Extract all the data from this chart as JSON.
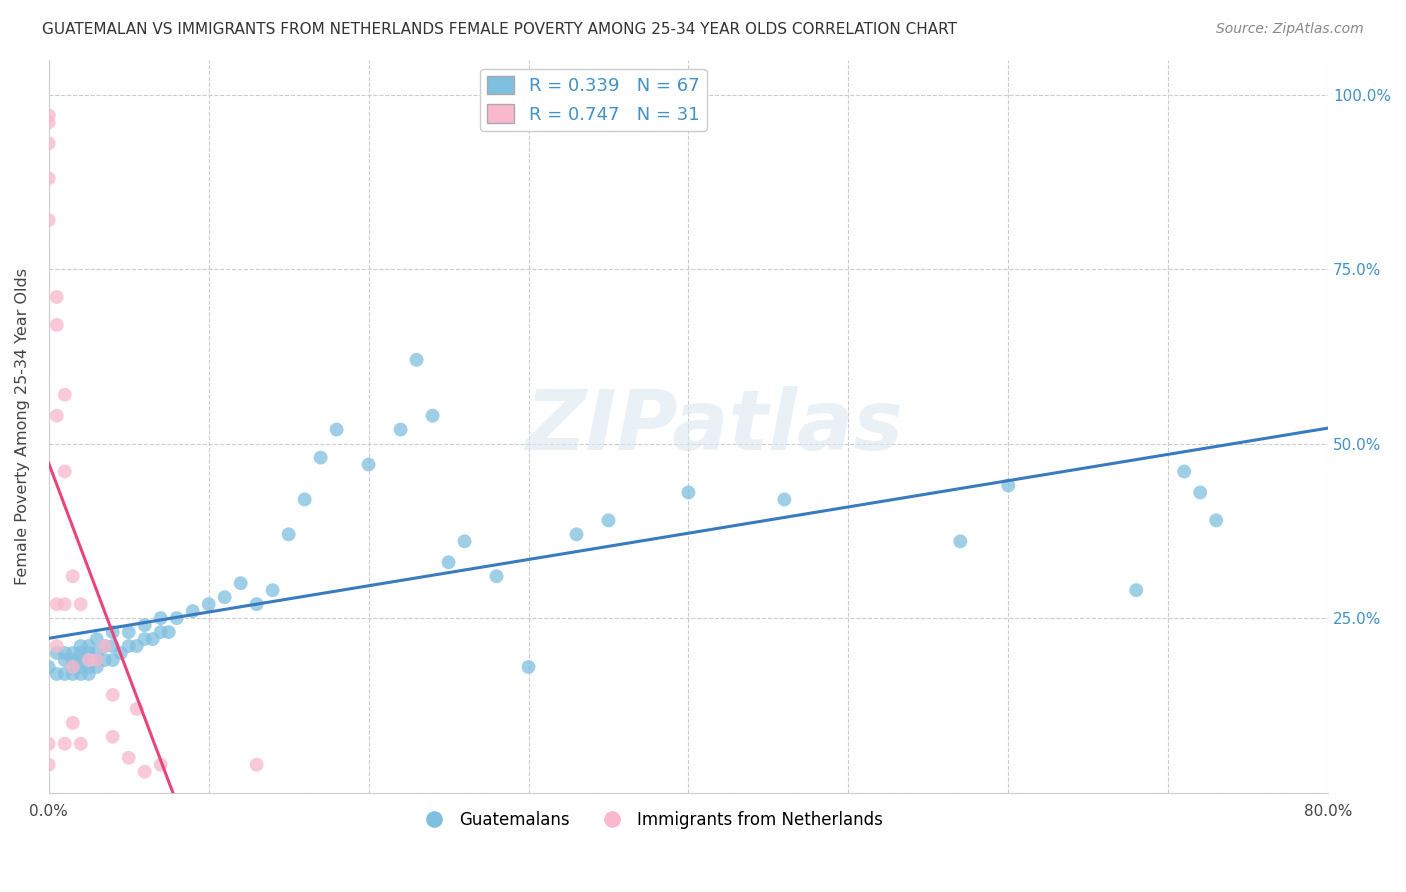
{
  "title": "GUATEMALAN VS IMMIGRANTS FROM NETHERLANDS FEMALE POVERTY AMONG 25-34 YEAR OLDS CORRELATION CHART",
  "source": "Source: ZipAtlas.com",
  "ylabel": "Female Poverty Among 25-34 Year Olds",
  "xlim": [
    0.0,
    0.8
  ],
  "ylim": [
    0.0,
    1.05
  ],
  "xticks": [
    0.0,
    0.1,
    0.2,
    0.3,
    0.4,
    0.5,
    0.6,
    0.7,
    0.8
  ],
  "xticklabels": [
    "0.0%",
    "",
    "",
    "",
    "",
    "",
    "",
    "",
    "80.0%"
  ],
  "ytick_positions": [
    0.0,
    0.25,
    0.5,
    0.75,
    1.0
  ],
  "ytick_labels": [
    "",
    "25.0%",
    "50.0%",
    "75.0%",
    "100.0%"
  ],
  "blue_R": 0.339,
  "blue_N": 67,
  "pink_R": 0.747,
  "pink_N": 31,
  "blue_color": "#7fbfdf",
  "pink_color": "#f9b8cc",
  "blue_line_color": "#3a7bbf",
  "pink_line_color": "#e8457a",
  "watermark": "ZIPatlas",
  "blue_scatter_x": [
    0.0,
    0.005,
    0.005,
    0.01,
    0.01,
    0.01,
    0.015,
    0.015,
    0.015,
    0.015,
    0.02,
    0.02,
    0.02,
    0.02,
    0.02,
    0.025,
    0.025,
    0.025,
    0.025,
    0.03,
    0.03,
    0.03,
    0.03,
    0.035,
    0.035,
    0.04,
    0.04,
    0.04,
    0.045,
    0.05,
    0.05,
    0.055,
    0.06,
    0.06,
    0.065,
    0.07,
    0.07,
    0.075,
    0.08,
    0.09,
    0.1,
    0.11,
    0.12,
    0.13,
    0.14,
    0.15,
    0.16,
    0.17,
    0.18,
    0.2,
    0.22,
    0.23,
    0.24,
    0.25,
    0.26,
    0.28,
    0.3,
    0.33,
    0.35,
    0.4,
    0.46,
    0.57,
    0.6,
    0.68,
    0.71,
    0.72,
    0.73
  ],
  "blue_scatter_y": [
    0.18,
    0.17,
    0.2,
    0.17,
    0.19,
    0.2,
    0.17,
    0.18,
    0.19,
    0.2,
    0.17,
    0.18,
    0.19,
    0.2,
    0.21,
    0.17,
    0.18,
    0.2,
    0.21,
    0.18,
    0.19,
    0.2,
    0.22,
    0.19,
    0.21,
    0.19,
    0.21,
    0.23,
    0.2,
    0.21,
    0.23,
    0.21,
    0.22,
    0.24,
    0.22,
    0.23,
    0.25,
    0.23,
    0.25,
    0.26,
    0.27,
    0.28,
    0.3,
    0.27,
    0.29,
    0.37,
    0.42,
    0.48,
    0.52,
    0.47,
    0.52,
    0.62,
    0.54,
    0.33,
    0.36,
    0.31,
    0.18,
    0.37,
    0.39,
    0.43,
    0.42,
    0.36,
    0.44,
    0.29,
    0.46,
    0.43,
    0.39
  ],
  "pink_scatter_x": [
    0.0,
    0.0,
    0.0,
    0.0,
    0.0,
    0.0,
    0.0,
    0.005,
    0.005,
    0.005,
    0.005,
    0.005,
    0.01,
    0.01,
    0.01,
    0.01,
    0.015,
    0.015,
    0.015,
    0.02,
    0.02,
    0.025,
    0.03,
    0.035,
    0.04,
    0.04,
    0.05,
    0.055,
    0.06,
    0.07,
    0.13
  ],
  "pink_scatter_y": [
    0.04,
    0.07,
    0.82,
    0.88,
    0.93,
    0.96,
    0.97,
    0.21,
    0.27,
    0.54,
    0.67,
    0.71,
    0.07,
    0.27,
    0.46,
    0.57,
    0.1,
    0.18,
    0.31,
    0.07,
    0.27,
    0.19,
    0.19,
    0.21,
    0.08,
    0.14,
    0.05,
    0.12,
    0.03,
    0.04,
    0.04
  ]
}
